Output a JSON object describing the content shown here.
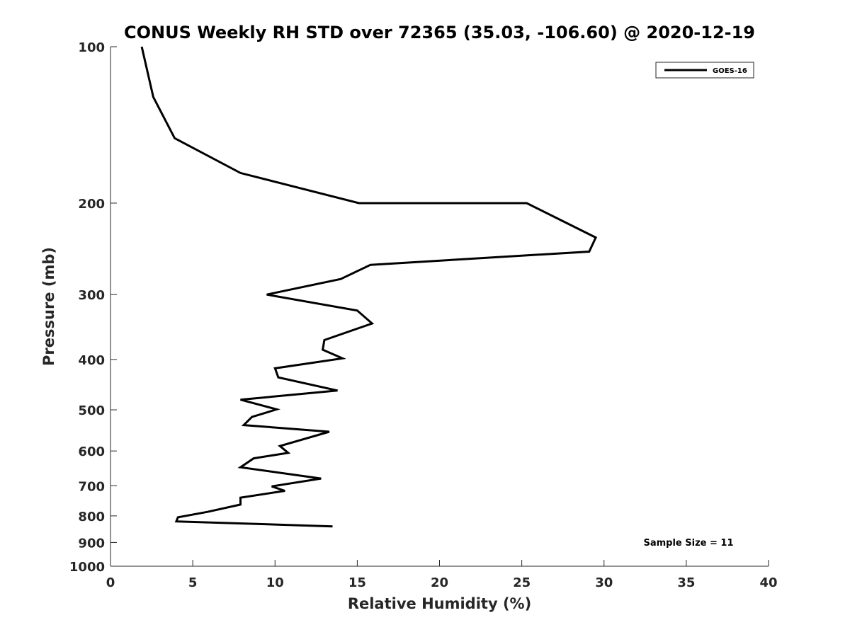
{
  "chart_data": {
    "type": "line",
    "title": "CONUS Weekly RH STD over 72365 (35.03, -106.60) @ 2020-12-19",
    "xlabel": "Relative Humidity (%)",
    "ylabel": "Pressure (mb)",
    "xlim": [
      0,
      40
    ],
    "ylim": [
      100,
      1000
    ],
    "y_scale": "log",
    "y_reversed": true,
    "x_ticks": [
      0,
      5,
      10,
      15,
      20,
      25,
      30,
      35,
      40
    ],
    "y_ticks": [
      100,
      200,
      300,
      400,
      500,
      600,
      700,
      800,
      900,
      1000
    ],
    "grid": false,
    "legend_position": "top-right",
    "series": [
      {
        "name": "GOES-16",
        "color": "#000000",
        "points": [
          [
            1.9,
            100
          ],
          [
            2.6,
            125
          ],
          [
            3.9,
            150
          ],
          [
            7.9,
            175
          ],
          [
            15.1,
            200.0
          ],
          [
            25.3,
            200
          ],
          [
            29.5,
            233
          ],
          [
            29.1,
            248
          ],
          [
            15.8,
            263
          ],
          [
            14.0,
            280
          ],
          [
            9.5,
            300
          ],
          [
            15.0,
            322
          ],
          [
            15.9,
            341
          ],
          [
            13.0,
            367
          ],
          [
            12.9,
            383
          ],
          [
            14.1,
            398
          ],
          [
            10.0,
            416
          ],
          [
            10.2,
            433
          ],
          [
            13.8,
            459
          ],
          [
            7.9,
            478
          ],
          [
            10.1,
            499
          ],
          [
            8.6,
            516
          ],
          [
            8.1,
            535
          ],
          [
            13.3,
            551
          ],
          [
            10.3,
            587
          ],
          [
            10.8,
            605
          ],
          [
            8.7,
            620
          ],
          [
            7.9,
            645
          ],
          [
            12.8,
            678
          ],
          [
            9.8,
            702
          ],
          [
            10.6,
            716
          ],
          [
            7.9,
            738
          ],
          [
            7.9,
            761
          ],
          [
            5.9,
            786
          ],
          [
            4.1,
            805
          ],
          [
            4.0,
            820
          ],
          [
            13.5,
            838
          ]
        ]
      }
    ],
    "annotations": [
      "Sample Size = 11"
    ]
  }
}
